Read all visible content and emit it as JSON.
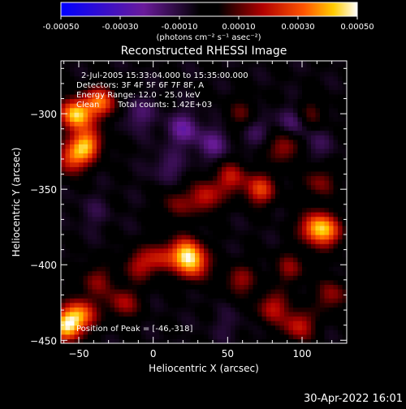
{
  "chart_data": {
    "type": "heatmap",
    "title": "Reconstructed RHESSI Image",
    "xlabel": "Heliocentric X (arcsec)",
    "ylabel": "Heliocentric Y (arcsec)",
    "xlim": [
      -62,
      130
    ],
    "ylim": [
      -452,
      -265
    ],
    "xticks": [
      -50,
      0,
      50,
      100
    ],
    "xtick_labels": [
      "−50",
      "0",
      "50",
      "100"
    ],
    "yticks": [
      -300,
      -350,
      -400,
      -450
    ],
    "ytick_labels": [
      "−300",
      "−350",
      "−400",
      "−450"
    ],
    "colorbar": {
      "range": [
        -0.0005,
        0.0005
      ],
      "ticks": [
        -0.0005,
        -0.0003,
        -0.0001,
        0.0001,
        0.0003,
        0.0005
      ],
      "tick_labels": [
        "-0.00050",
        "-0.00030",
        "-0.00010",
        "0.00010",
        "0.00030",
        "0.00050"
      ],
      "label": "(photons cm⁻² s⁻¹ asec⁻²)",
      "colormap": [
        "#0000ff",
        "#6a1b9a",
        "#000000",
        "#b00000",
        "#ff5500",
        "#ffcc00",
        "#ffffff"
      ]
    },
    "annotations": {
      "time": "2-Jul-2005 15:33:04.000 to 15:35:00.000",
      "detectors": "Detectors: 3F 4F 5F 6F 7F 8F, A",
      "energy": "Energy Range: 12.0 - 25.0 keV",
      "clean_label": "Clean",
      "counts": "Total counts: 1.42E+03",
      "peak": "Position of Peak = [-46,-318]"
    },
    "peak": {
      "x": -46,
      "y": -318
    },
    "sources": [
      {
        "x": -52,
        "y": -300,
        "value": 0.00048
      },
      {
        "x": -45,
        "y": -320,
        "value": 0.0004
      },
      {
        "x": -35,
        "y": -292,
        "value": 0.00035
      },
      {
        "x": -55,
        "y": -330,
        "value": 0.0003
      },
      {
        "x": -58,
        "y": -440,
        "value": 0.00046
      },
      {
        "x": -48,
        "y": -432,
        "value": 0.00032
      },
      {
        "x": -20,
        "y": -425,
        "value": 0.00022
      },
      {
        "x": -38,
        "y": -410,
        "value": 0.00018
      },
      {
        "x": -10,
        "y": -400,
        "value": 0.0002
      },
      {
        "x": 5,
        "y": -395,
        "value": 0.00022
      },
      {
        "x": 22,
        "y": -392,
        "value": 0.00038
      },
      {
        "x": 28,
        "y": -400,
        "value": 0.0003
      },
      {
        "x": 35,
        "y": -355,
        "value": 0.00026
      },
      {
        "x": 52,
        "y": -342,
        "value": 0.00024
      },
      {
        "x": 15,
        "y": -360,
        "value": 0.00016
      },
      {
        "x": 72,
        "y": -350,
        "value": 0.0003
      },
      {
        "x": 88,
        "y": -322,
        "value": 0.00022
      },
      {
        "x": 60,
        "y": -300,
        "value": 0.00014
      },
      {
        "x": 58,
        "y": -410,
        "value": 0.0002
      },
      {
        "x": 80,
        "y": -428,
        "value": 0.00024
      },
      {
        "x": 98,
        "y": -440,
        "value": 0.00026
      },
      {
        "x": 92,
        "y": -402,
        "value": 0.00018
      },
      {
        "x": 108,
        "y": -375,
        "value": 0.00034
      },
      {
        "x": 118,
        "y": -378,
        "value": 0.00028
      },
      {
        "x": 112,
        "y": -345,
        "value": 0.00018
      },
      {
        "x": 105,
        "y": -300,
        "value": 0.00015
      },
      {
        "x": 120,
        "y": -420,
        "value": 0.0002
      },
      {
        "x": -10,
        "y": -300,
        "value": -0.00012
      },
      {
        "x": 20,
        "y": -310,
        "value": -0.00018
      },
      {
        "x": 40,
        "y": -320,
        "value": -0.00015
      },
      {
        "x": 70,
        "y": -310,
        "value": -0.0001
      },
      {
        "x": 95,
        "y": -305,
        "value": -0.00014
      },
      {
        "x": 110,
        "y": -320,
        "value": -8e-05
      },
      {
        "x": 10,
        "y": -335,
        "value": -0.0001
      },
      {
        "x": -40,
        "y": -365,
        "value": -6e-05
      },
      {
        "x": 50,
        "y": -440,
        "value": -5e-05
      }
    ]
  },
  "footer": {
    "date": "30-Apr-2022 16:01"
  }
}
